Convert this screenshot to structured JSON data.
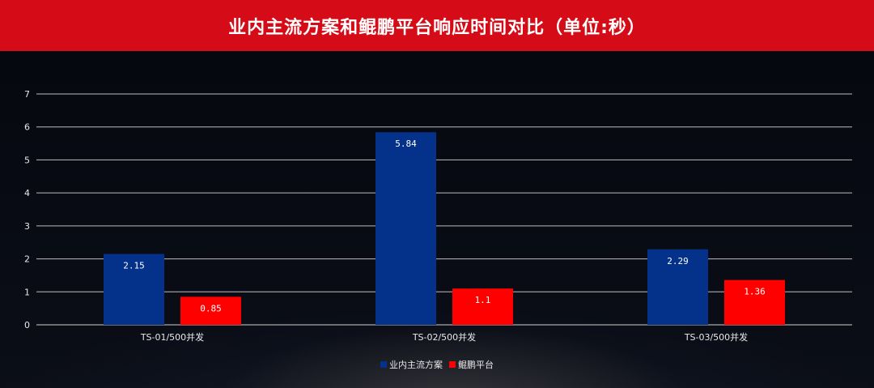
{
  "header": {
    "title": "业内主流方案和鲲鹏平台响应时间对比（单位:秒）"
  },
  "colors": {
    "title_bar": "#d50c17",
    "series_1": "#043189",
    "series_2": "#ff0000"
  },
  "chart_data": {
    "type": "bar",
    "title": "业内主流方案和鲲鹏平台响应时间对比（单位:秒）",
    "categories": [
      "TS-01/500并发",
      "TS-02/500并发",
      "TS-03/500并发"
    ],
    "series": [
      {
        "name": "业内主流方案",
        "values": [
          2.15,
          5.84,
          2.29
        ],
        "labels": [
          "2.15",
          "5.84",
          "2.29"
        ]
      },
      {
        "name": "鲲鹏平台",
        "values": [
          0.85,
          1.1,
          1.36
        ],
        "labels": [
          "0.85",
          "1.1",
          "1.36"
        ]
      }
    ],
    "yticks": [
      "0",
      "1",
      "2",
      "3",
      "4",
      "5",
      "6",
      "7"
    ],
    "ylim": [
      0,
      7
    ],
    "grid": true,
    "legend_position": "bottom"
  }
}
